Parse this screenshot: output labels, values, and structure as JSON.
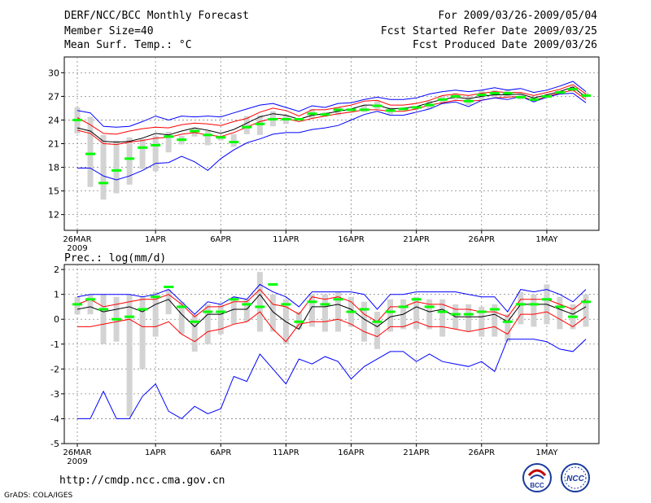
{
  "header": {
    "left": [
      "DERF/NCC/BCC Monthly Forecast",
      "Member Size=40",
      "Mean Surf. Temp.: °C"
    ],
    "right": [
      "For 2009/03/26-2009/05/04",
      "Fcst Started Refer Date 2009/03/25",
      "Fcst Produced Date 2009/03/26"
    ]
  },
  "footer": {
    "url": "http://cmdp.ncc.cma.gov.cn",
    "grads": "GrADS: COLA/IGES"
  },
  "logos": {
    "bcc": "BCC",
    "ncc": "NCC"
  },
  "colors": {
    "max_min": "#0000ff",
    "spread": "#ff0000",
    "mean_line": "#000000",
    "box": "#d3d3d3",
    "median": "#00ff00"
  },
  "chart_data": [
    {
      "type": "box-line",
      "title": "Mean Surf. Temp.: °C",
      "x_dates_start": "2009-03-26",
      "days": 40,
      "x_ticks": [
        {
          "label": "26MAR",
          "day": 0,
          "sub": "2009"
        },
        {
          "label": "1APR",
          "day": 6
        },
        {
          "label": "6APR",
          "day": 11
        },
        {
          "label": "11APR",
          "day": 16
        },
        {
          "label": "16APR",
          "day": 21
        },
        {
          "label": "21APR",
          "day": 26
        },
        {
          "label": "26APR",
          "day": 31
        },
        {
          "label": "1MAY",
          "day": 36
        }
      ],
      "ylim": [
        10,
        32
      ],
      "yticks": [
        12,
        15,
        18,
        21,
        24,
        27,
        30
      ],
      "series": [
        {
          "name": "max",
          "color": "#0000ff",
          "values": [
            25.2,
            24.9,
            23.2,
            23.1,
            23.2,
            23.8,
            24.5,
            24.0,
            24.5,
            24.4,
            24.5,
            24.4,
            24.9,
            25.4,
            25.9,
            26.1,
            25.6,
            25.1,
            25.8,
            25.6,
            26.1,
            26.2,
            26.6,
            26.9,
            26.6,
            26.6,
            26.8,
            27.3,
            27.6,
            27.8,
            27.6,
            27.8,
            28.1,
            27.8,
            28.0,
            27.5,
            27.8,
            28.3,
            28.9,
            27.6
          ]
        },
        {
          "name": "upper",
          "color": "#ff0000",
          "values": [
            24.3,
            23.4,
            22.3,
            22.2,
            22.6,
            22.9,
            23.1,
            23.0,
            23.4,
            23.6,
            23.5,
            23.3,
            23.8,
            24.2,
            25.0,
            25.5,
            25.2,
            24.5,
            25.3,
            25.3,
            25.6,
            25.9,
            26.4,
            26.5,
            25.9,
            25.9,
            26.1,
            26.5,
            27.1,
            27.3,
            27.1,
            27.4,
            27.6,
            27.5,
            27.5,
            27.1,
            27.5,
            27.9,
            28.5,
            27.3
          ]
        },
        {
          "name": "mean",
          "color": "#000000",
          "values": [
            23.0,
            22.6,
            21.3,
            21.2,
            21.3,
            21.7,
            22.3,
            22.1,
            22.6,
            23.0,
            22.7,
            22.3,
            22.8,
            23.6,
            24.4,
            24.8,
            24.6,
            24.1,
            24.6,
            24.8,
            25.1,
            25.4,
            25.9,
            25.9,
            25.4,
            25.5,
            25.7,
            26.2,
            26.6,
            26.9,
            26.7,
            27.0,
            27.2,
            27.2,
            27.3,
            26.8,
            27.2,
            27.6,
            28.2,
            26.9
          ]
        },
        {
          "name": "lower",
          "color": "#ff0000",
          "values": [
            22.7,
            22.3,
            21.0,
            20.9,
            21.2,
            21.4,
            21.7,
            21.8,
            22.2,
            22.4,
            22.1,
            21.9,
            22.4,
            23.1,
            23.8,
            24.2,
            24.2,
            23.8,
            24.2,
            24.5,
            24.8,
            25.0,
            25.3,
            25.3,
            25.1,
            25.1,
            25.4,
            25.9,
            26.2,
            26.5,
            26.4,
            26.5,
            26.8,
            26.9,
            27.0,
            26.5,
            27.0,
            27.4,
            27.8,
            26.6
          ]
        },
        {
          "name": "min",
          "color": "#0000ff",
          "values": [
            17.9,
            17.9,
            16.9,
            16.4,
            16.9,
            17.6,
            18.5,
            18.6,
            19.4,
            18.7,
            17.6,
            19.1,
            20.2,
            21.1,
            21.6,
            22.2,
            22.4,
            22.4,
            22.8,
            23.0,
            23.3,
            24.0,
            24.7,
            25.1,
            24.6,
            24.6,
            25.0,
            25.4,
            26.1,
            26.3,
            25.7,
            26.5,
            26.8,
            26.6,
            27.0,
            26.3,
            26.9,
            27.3,
            27.4,
            26.2
          ]
        }
      ],
      "boxes": {
        "top": [
          25.6,
          24.4,
          22.1,
          21.4,
          21.8,
          21.6,
          22.0,
          22.5,
          22.0,
          22.9,
          22.6,
          22.0,
          22.2,
          24.5,
          24.6,
          25.1,
          24.6,
          24.1,
          25.4,
          25.0,
          25.6,
          25.5,
          25.9,
          26.4,
          25.6,
          25.6,
          25.8,
          26.4,
          27.1,
          27.4,
          27.0,
          27.8,
          27.8,
          27.9,
          27.2,
          26.9,
          27.2,
          27.8,
          28.3,
          27.5
        ],
        "bottom": [
          22.3,
          15.5,
          13.9,
          14.7,
          15.8,
          17.8,
          17.5,
          19.9,
          20.9,
          21.9,
          20.8,
          21.4,
          20.6,
          22.2,
          22.1,
          23.2,
          23.5,
          24.0,
          24.2,
          24.4,
          24.6,
          25.1,
          25.0,
          25.4,
          24.7,
          25.3,
          25.3,
          25.4,
          26.0,
          26.6,
          25.9,
          26.6,
          26.9,
          26.9,
          26.6,
          26.4,
          26.8,
          27.3,
          27.6,
          26.9
        ],
        "median": [
          24.0,
          19.7,
          16.0,
          17.6,
          19.1,
          20.5,
          20.8,
          21.9,
          21.5,
          22.6,
          22.1,
          21.8,
          21.2,
          23.1,
          23.5,
          24.1,
          24.1,
          24.1,
          24.8,
          24.7,
          25.3,
          25.3,
          25.3,
          25.8,
          25.2,
          25.4,
          25.6,
          25.9,
          26.6,
          27.0,
          26.4,
          27.2,
          27.4,
          27.4,
          26.9,
          26.6,
          27.0,
          27.5,
          27.9,
          27.1
        ]
      }
    },
    {
      "type": "box-line",
      "title": "Prec.: log(mm/d)",
      "x_dates_start": "2009-03-26",
      "days": 40,
      "x_ticks": [
        {
          "label": "26MAR",
          "day": 0,
          "sub": "2009"
        },
        {
          "label": "1APR",
          "day": 6
        },
        {
          "label": "6APR",
          "day": 11
        },
        {
          "label": "11APR",
          "day": 16
        },
        {
          "label": "16APR",
          "day": 21
        },
        {
          "label": "21APR",
          "day": 26
        },
        {
          "label": "26APR",
          "day": 31
        },
        {
          "label": "1MAY",
          "day": 36
        }
      ],
      "ylim": [
        -5,
        2.2
      ],
      "yticks": [
        -5,
        -4,
        -3,
        -2,
        -1,
        0,
        1,
        2
      ],
      "series": [
        {
          "name": "max",
          "color": "#0000ff",
          "values": [
            0.9,
            1.0,
            1.0,
            1.0,
            1.0,
            0.9,
            1.0,
            1.2,
            0.7,
            0.2,
            0.7,
            0.6,
            0.9,
            0.8,
            1.4,
            1.1,
            0.9,
            0.5,
            1.1,
            1.1,
            1.1,
            1.1,
            1.0,
            0.4,
            1.0,
            1.0,
            1.1,
            1.1,
            1.1,
            1.1,
            1.0,
            0.9,
            0.9,
            0.3,
            1.2,
            1.1,
            1.2,
            1.0,
            0.7,
            1.2
          ]
        },
        {
          "name": "upper",
          "color": "#ff0000",
          "values": [
            0.6,
            0.8,
            0.5,
            0.6,
            0.7,
            0.8,
            0.8,
            1.0,
            0.6,
            0.1,
            0.5,
            0.5,
            0.7,
            0.7,
            1.2,
            0.6,
            0.5,
            0.2,
            0.9,
            0.8,
            0.9,
            0.7,
            0.2,
            -0.1,
            0.5,
            0.5,
            0.7,
            0.6,
            0.6,
            0.4,
            0.4,
            0.3,
            0.3,
            0.1,
            0.8,
            0.8,
            0.8,
            0.6,
            0.4,
            0.8
          ]
        },
        {
          "name": "mean",
          "color": "#000000",
          "values": [
            0.4,
            0.5,
            0.3,
            0.4,
            0.5,
            0.3,
            0.6,
            0.8,
            0.2,
            -0.3,
            0.2,
            0.2,
            0.4,
            0.4,
            1.0,
            0.3,
            -0.1,
            -0.4,
            0.5,
            0.5,
            0.6,
            0.4,
            0.0,
            -0.3,
            0.1,
            0.2,
            0.5,
            0.3,
            0.4,
            0.1,
            0.1,
            0.1,
            0.2,
            -0.1,
            0.6,
            0.6,
            0.6,
            0.4,
            0.2,
            0.5
          ]
        },
        {
          "name": "lower",
          "color": "#ff0000",
          "values": [
            -0.3,
            -0.3,
            -0.2,
            -0.1,
            0.0,
            -0.3,
            -0.3,
            -0.1,
            -0.6,
            -0.9,
            -0.5,
            -0.4,
            -0.2,
            -0.1,
            0.3,
            -0.4,
            -0.9,
            -0.2,
            -0.1,
            -0.1,
            0.0,
            -0.2,
            -0.5,
            -0.7,
            -0.3,
            -0.3,
            -0.1,
            -0.3,
            -0.3,
            -0.4,
            -0.5,
            -0.4,
            -0.3,
            -0.6,
            0.2,
            0.2,
            0.3,
            0.0,
            -0.3,
            0.1
          ]
        },
        {
          "name": "min",
          "color": "#0000ff",
          "values": [
            -4.0,
            -4.0,
            -2.9,
            -4.0,
            -4.0,
            -3.1,
            -2.6,
            -3.7,
            -4.0,
            -3.5,
            -3.8,
            -3.6,
            -2.3,
            -2.5,
            -1.4,
            -2.0,
            -2.6,
            -1.6,
            -1.8,
            -1.5,
            -1.7,
            -2.4,
            -1.9,
            -1.6,
            -1.3,
            -1.3,
            -1.7,
            -1.4,
            -1.7,
            -1.8,
            -1.9,
            -1.7,
            -2.1,
            -0.8,
            -0.8,
            -0.8,
            -0.9,
            -1.2,
            -1.3,
            -0.8
          ]
        }
      ],
      "boxes": {
        "top": [
          0.9,
          1.0,
          1.0,
          0.9,
          1.0,
          0.9,
          1.1,
          1.2,
          0.7,
          0.2,
          0.6,
          0.6,
          0.9,
          0.8,
          1.9,
          1.0,
          0.8,
          0.3,
          1.0,
          1.0,
          1.1,
          0.9,
          0.7,
          0.3,
          0.8,
          0.8,
          0.9,
          0.8,
          0.8,
          0.6,
          0.6,
          0.5,
          0.6,
          0.2,
          1.1,
          1.0,
          1.4,
          0.9,
          0.6,
          1.0
        ],
        "bottom": [
          0.2,
          0.2,
          -1.0,
          -0.9,
          -3.9,
          -2.0,
          -0.7,
          0.2,
          -0.6,
          -1.3,
          -1.0,
          -0.6,
          -0.2,
          -0.1,
          -0.5,
          -0.5,
          -1.0,
          -0.4,
          -0.3,
          -0.5,
          -0.5,
          -0.3,
          -0.9,
          -1.2,
          -0.5,
          -0.4,
          -0.4,
          -0.4,
          -0.7,
          -0.4,
          -0.5,
          -0.7,
          -0.7,
          -0.9,
          -0.2,
          -0.3,
          -0.2,
          -0.4,
          -0.4,
          -0.3
        ],
        "median": [
          0.6,
          0.8,
          0.4,
          0.0,
          0.1,
          0.4,
          0.9,
          1.3,
          0.5,
          -0.1,
          0.3,
          0.3,
          0.8,
          0.6,
          0.5,
          1.4,
          0.6,
          -0.1,
          0.7,
          0.6,
          0.8,
          0.3,
          0.4,
          -0.1,
          0.3,
          0.5,
          0.8,
          0.5,
          0.3,
          0.2,
          0.2,
          0.3,
          0.4,
          -0.1,
          0.6,
          0.6,
          0.8,
          0.5,
          0.1,
          0.7
        ]
      }
    }
  ]
}
